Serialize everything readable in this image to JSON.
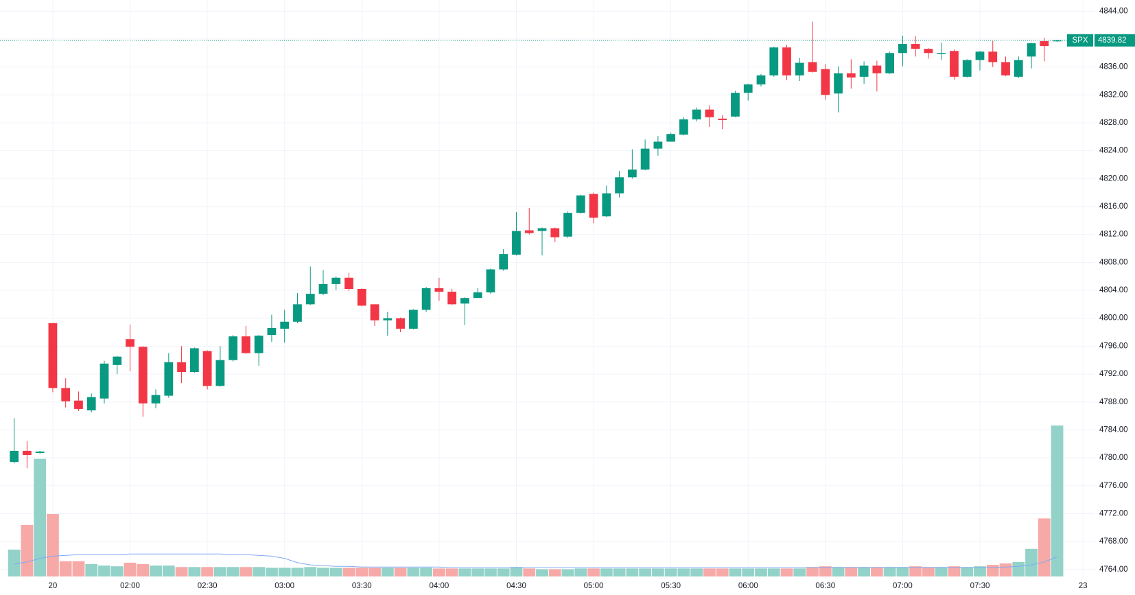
{
  "chart_data": {
    "type": "candlestick",
    "symbol": "SPX",
    "last_price": 4839.82,
    "up_color": "#089981",
    "down_color": "#f23645",
    "volume_up_color": "#92d2c8",
    "volume_down_color": "#f7a9a7",
    "volume_ma_color": "#7fa8f5",
    "grid": true,
    "ylim": [
      4762.8,
      4845.6
    ],
    "yticks": [
      {
        "value": 4764,
        "label": "4764.00"
      },
      {
        "value": 4768,
        "label": "4768.00"
      },
      {
        "value": 4772,
        "label": "4772.00"
      },
      {
        "value": 4776,
        "label": "4776.00"
      },
      {
        "value": 4780,
        "label": "4780.00"
      },
      {
        "value": 4784,
        "label": "4784.00"
      },
      {
        "value": 4788,
        "label": "4788.00"
      },
      {
        "value": 4792,
        "label": "4792.00"
      },
      {
        "value": 4796,
        "label": "4796.00"
      },
      {
        "value": 4800,
        "label": "4800.00"
      },
      {
        "value": 4804,
        "label": "4804.00"
      },
      {
        "value": 4808,
        "label": "4808.00"
      },
      {
        "value": 4812,
        "label": "4812.00"
      },
      {
        "value": 4816,
        "label": "4816.00"
      },
      {
        "value": 4820,
        "label": "4820.00"
      },
      {
        "value": 4824,
        "label": "4824.00"
      },
      {
        "value": 4828,
        "label": "4828.00"
      },
      {
        "value": 4832,
        "label": "4832.00"
      },
      {
        "value": 4836,
        "label": "4836.00"
      },
      {
        "value": 4840,
        "label": "4840.00"
      },
      {
        "value": 4844,
        "label": "4844.00"
      }
    ],
    "xlim": [
      -1.1,
      83.9
    ],
    "xticks": [
      {
        "value": 3,
        "label": "20"
      },
      {
        "value": 9,
        "label": "02:00"
      },
      {
        "value": 15,
        "label": "02:30"
      },
      {
        "value": 21,
        "label": "03:00"
      },
      {
        "value": 27,
        "label": "03:30"
      },
      {
        "value": 33,
        "label": "04:00"
      },
      {
        "value": 39,
        "label": "04:30"
      },
      {
        "value": 45,
        "label": "05:00"
      },
      {
        "value": 51,
        "label": "05:30"
      },
      {
        "value": 57,
        "label": "06:00"
      },
      {
        "value": 63,
        "label": "06:30"
      },
      {
        "value": 69,
        "label": "07:00"
      },
      {
        "value": 75,
        "label": "07:30"
      },
      {
        "value": 83,
        "label": "23"
      }
    ],
    "open": [
      4779.4,
      4781.0,
      4780.7,
      4799.3,
      4790.0,
      4788.2,
      4786.8,
      4788.5,
      4793.3,
      4797.0,
      4795.9,
      4787.8,
      4788.9,
      4793.7,
      4792.3,
      4795.3,
      4790.3,
      4794.0,
      4797.4,
      4795.0,
      4797.6,
      4798.5,
      4799.5,
      4802.0,
      4803.5,
      4804.9,
      4805.8,
      4804.2,
      4802.0,
      4799.7,
      4800.0,
      4798.5,
      4801.2,
      4804.3,
      4803.8,
      4802.1,
      4802.9,
      4803.7,
      4807.0,
      4809.1,
      4812.6,
      4812.5,
      4812.9,
      4811.7,
      4815.1,
      4817.8,
      4814.6,
      4817.9,
      4820.2,
      4821.3,
      4824.3,
      4825.3,
      4826.3,
      4828.5,
      4829.9,
      4828.6,
      4828.9,
      4832.3,
      4833.5,
      4834.8,
      4838.8,
      4834.8,
      4836.7,
      4835.7,
      4832.2,
      4835.1,
      4834.6,
      4836.2,
      4835.1,
      4838.0,
      4839.3,
      4838.6,
      4837.9,
      4838.3,
      4834.6,
      4837.0,
      4838.2,
      4836.7,
      4834.6,
      4837.5,
      4839.7,
      4839.7
    ],
    "high": [
      4785.7,
      4782.4,
      4781.0,
      4799.3,
      4791.4,
      4789.5,
      4789.2,
      4793.9,
      4794.6,
      4799.1,
      4796.0,
      4789.8,
      4795.0,
      4796.0,
      4795.8,
      4795.4,
      4796.0,
      4797.6,
      4798.9,
      4797.6,
      4800.5,
      4801.2,
      4803.6,
      4807.4,
      4806.9,
      4806.0,
      4806.5,
      4804.3,
      4802.0,
      4800.9,
      4800.1,
      4801.3,
      4804.5,
      4805.8,
      4804.2,
      4803.0,
      4804.3,
      4807.1,
      4809.9,
      4815.2,
      4815.8,
      4813.0,
      4813.0,
      4815.3,
      4817.7,
      4818.0,
      4819.0,
      4821.1,
      4824.2,
      4825.6,
      4826.1,
      4826.6,
      4828.8,
      4830.2,
      4830.5,
      4829.1,
      4832.6,
      4833.6,
      4835.0,
      4838.9,
      4839.2,
      4837.3,
      4842.5,
      4836.4,
      4836.1,
      4837.1,
      4836.8,
      4836.9,
      4838.2,
      4840.5,
      4840.4,
      4838.7,
      4839.5,
      4838.5,
      4837.1,
      4838.3,
      4839.7,
      4837.5,
      4837.5,
      4839.5,
      4840.2,
      4839.9
    ],
    "low": [
      4779.2,
      4778.5,
      4780.6,
      4789.4,
      4787.2,
      4786.7,
      4786.5,
      4787.8,
      4792.0,
      4792.4,
      4785.9,
      4787.1,
      4788.6,
      4790.7,
      4792.2,
      4789.8,
      4790.2,
      4793.8,
      4794.9,
      4793.2,
      4796.6,
      4796.5,
      4799.3,
      4801.9,
      4803.3,
      4804.0,
      4803.9,
      4801.7,
      4798.9,
      4797.5,
      4798.0,
      4798.4,
      4800.9,
      4802.5,
      4801.9,
      4799.0,
      4802.9,
      4803.5,
      4806.8,
      4809.0,
      4812.0,
      4809.0,
      4810.9,
      4811.5,
      4815.0,
      4813.6,
      4814.5,
      4817.3,
      4820.0,
      4821.2,
      4823.3,
      4825.3,
      4826.2,
      4828.2,
      4827.4,
      4827.1,
      4828.8,
      4831.2,
      4833.2,
      4834.6,
      4834.1,
      4834.0,
      4835.2,
      4831.3,
      4829.5,
      4832.9,
      4833.6,
      4832.5,
      4835.0,
      4836.1,
      4837.5,
      4837.2,
      4837.0,
      4834.2,
      4834.5,
      4835.5,
      4836.0,
      4834.7,
      4834.4,
      4835.8,
      4836.8,
      4839.6
    ],
    "close": [
      4781.0,
      4780.4,
      4780.9,
      4790.0,
      4788.1,
      4787.0,
      4788.7,
      4793.5,
      4794.5,
      4795.9,
      4787.8,
      4789.0,
      4793.7,
      4792.3,
      4795.7,
      4790.3,
      4794.0,
      4797.4,
      4795.0,
      4797.5,
      4798.6,
      4799.5,
      4802.0,
      4803.5,
      4804.9,
      4805.8,
      4804.2,
      4801.8,
      4799.7,
      4800.0,
      4798.5,
      4801.2,
      4804.3,
      4803.8,
      4802.0,
      4802.9,
      4803.7,
      4807.0,
      4809.2,
      4812.5,
      4812.2,
      4812.9,
      4811.6,
      4815.1,
      4817.6,
      4814.4,
      4817.9,
      4820.2,
      4821.3,
      4824.3,
      4825.3,
      4826.4,
      4828.5,
      4829.9,
      4828.8,
      4828.4,
      4832.3,
      4833.5,
      4834.8,
      4838.8,
      4834.8,
      4836.6,
      4835.3,
      4832.0,
      4835.1,
      4834.5,
      4836.2,
      4835.1,
      4838.0,
      4839.3,
      4838.6,
      4838.0,
      4838.0,
      4834.6,
      4837.0,
      4838.2,
      4836.7,
      4834.8,
      4837.0,
      4839.4,
      4839.0,
      4839.82
    ],
    "volume": [
      37,
      71,
      162,
      86,
      21,
      21,
      17,
      15,
      14,
      19,
      17,
      15,
      15,
      13,
      13,
      13,
      13,
      13,
      13,
      13,
      12,
      12,
      12,
      13,
      12,
      12,
      12,
      12,
      12,
      12,
      12,
      12,
      12,
      11,
      11,
      11,
      11,
      11,
      11,
      13,
      11,
      10,
      10,
      10,
      11,
      11,
      11,
      11,
      11,
      11,
      11,
      11,
      11,
      11,
      11,
      11,
      11,
      11,
      11,
      11,
      11,
      11,
      13,
      14,
      13,
      13,
      13,
      13,
      13,
      13,
      14,
      13,
      13,
      14,
      13,
      14,
      16,
      18,
      20,
      38,
      80,
      208
    ],
    "volume_ma": [
      17,
      20,
      25,
      28,
      29,
      30,
      30,
      30,
      30,
      31,
      31,
      31,
      31,
      31,
      31,
      31,
      31,
      30,
      30,
      29,
      28,
      25,
      19,
      16,
      15,
      14,
      14,
      13,
      13,
      13,
      13,
      13,
      13,
      13,
      12,
      12,
      12,
      12,
      12,
      12,
      12,
      12,
      12,
      12,
      12,
      12,
      12,
      12,
      12,
      12,
      12,
      12,
      12,
      12,
      12,
      12,
      12,
      12,
      12,
      12,
      12,
      12,
      12,
      12,
      12,
      12,
      12,
      12,
      12,
      12,
      12,
      12,
      12,
      12,
      12,
      12,
      12,
      13,
      14,
      16,
      20,
      27
    ]
  }
}
